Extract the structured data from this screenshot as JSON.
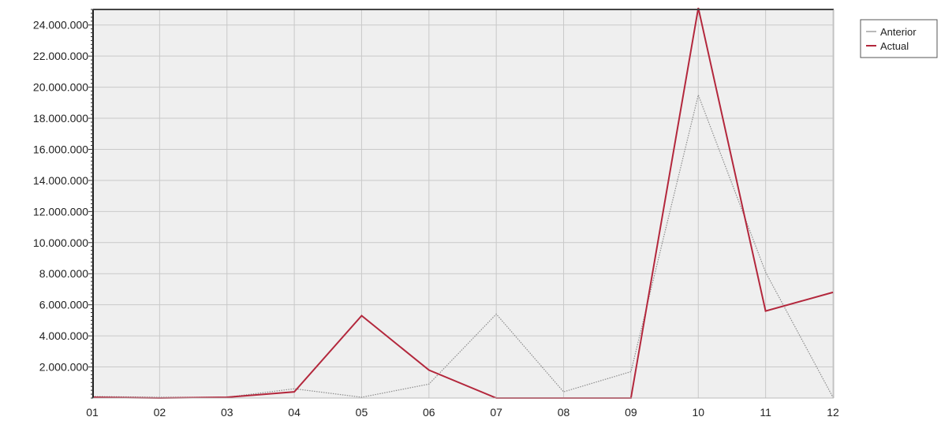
{
  "chart_data": {
    "type": "line",
    "title": "",
    "xlabel": "",
    "ylabel": "",
    "categories": [
      "01",
      "02",
      "03",
      "04",
      "05",
      "06",
      "07",
      "08",
      "09",
      "10",
      "11",
      "12"
    ],
    "y_ticks": [
      "2.000.000",
      "4.000.000",
      "6.000.000",
      "8.000.000",
      "10.000.000",
      "12.000.000",
      "14.000.000",
      "16.000.000",
      "18.000.000",
      "20.000.000",
      "22.000.000",
      "24.000.000"
    ],
    "ylim": [
      0,
      25000000
    ],
    "grid": true,
    "legend_position": "top-right",
    "series": [
      {
        "name": "Anterior",
        "color": "#8c8c8c",
        "style": "dotted",
        "values": [
          100000,
          50000,
          50000,
          600000,
          50000,
          900000,
          5400000,
          400000,
          1700000,
          19500000,
          8100000,
          50000
        ]
      },
      {
        "name": "Actual",
        "color": "#b3273c",
        "style": "solid",
        "values": [
          50000,
          0,
          50000,
          400000,
          5300000,
          1800000,
          0,
          0,
          0,
          25100000,
          5600000,
          6800000
        ]
      }
    ]
  }
}
